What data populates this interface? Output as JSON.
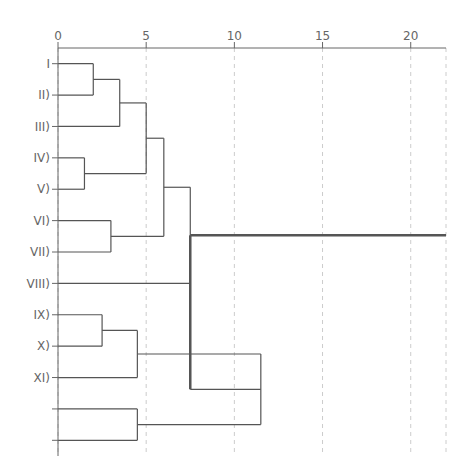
{
  "chart_data": {
    "type": "dendrogram",
    "categories": [
      "I",
      "II)",
      "III)",
      "IV)",
      "V)",
      "VI)",
      "VII)",
      "VIII)",
      "IX)",
      "X)",
      "XI)",
      null,
      null
    ],
    "merges": [
      {
        "join": [
          0,
          1
        ],
        "distance": 2.0
      },
      {
        "join": [
          13,
          2
        ],
        "distance": 3.5
      },
      {
        "join": [
          3,
          4
        ],
        "distance": 1.5
      },
      {
        "join": [
          14,
          15
        ],
        "distance": 5.0
      },
      {
        "join": [
          5,
          6
        ],
        "distance": 3.0
      },
      {
        "join": [
          16,
          17
        ],
        "distance": 6.0
      },
      {
        "join": [
          18,
          7
        ],
        "distance": 7.5
      },
      {
        "join": [
          8,
          9
        ],
        "distance": 2.5
      },
      {
        "join": [
          20,
          10
        ],
        "distance": 4.5
      },
      {
        "join": [
          11,
          12
        ],
        "distance": 4.5
      },
      {
        "join": [
          21,
          22
        ],
        "distance": 11.5
      },
      {
        "join": [
          19,
          23
        ],
        "distance": 7.5
      }
    ],
    "xlim": [
      0,
      22
    ],
    "xticks": [
      0,
      5,
      10,
      15,
      20
    ],
    "grid": true,
    "color": "#555555"
  }
}
